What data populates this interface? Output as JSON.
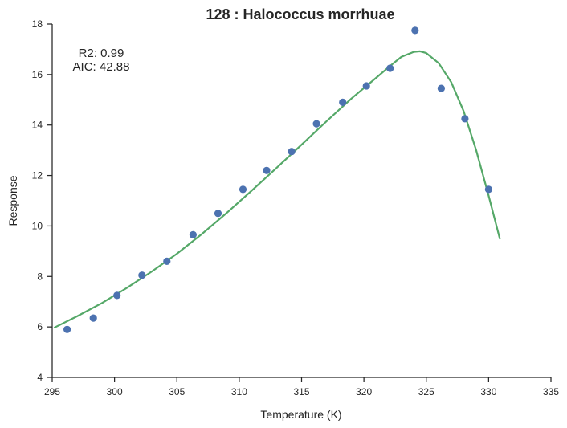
{
  "chart_data": {
    "type": "scatter",
    "title": "128 : Halococcus morrhuae",
    "xlabel": "Temperature (K)",
    "ylabel": "Response",
    "xlim": [
      295,
      335
    ],
    "ylim": [
      4,
      18
    ],
    "xticks": [
      "295",
      "300",
      "305",
      "310",
      "315",
      "320",
      "325",
      "330",
      "335"
    ],
    "yticks": [
      "4",
      "6",
      "8",
      "10",
      "12",
      "14",
      "16",
      "18"
    ],
    "grid": false,
    "annotations": [
      "R2: 0.99",
      "AIC: 42.88"
    ],
    "colors": {
      "points": "#4c72b0",
      "fit": "#55a868"
    },
    "series": [
      {
        "type": "scatter",
        "x": [
          296.2,
          298.3,
          300.2,
          302.2,
          304.2,
          306.3,
          308.3,
          310.3,
          312.2,
          314.2,
          316.2,
          318.3,
          320.2,
          322.1,
          324.1,
          326.2,
          328.1,
          330.0
        ],
        "y": [
          5.9,
          6.35,
          7.25,
          8.05,
          8.6,
          9.65,
          10.5,
          11.45,
          12.2,
          12.95,
          14.05,
          14.9,
          15.55,
          16.25,
          17.75,
          15.45,
          14.25,
          11.45
        ]
      },
      {
        "type": "line",
        "x": [
          295.2,
          297,
          299,
          301,
          303,
          305,
          307,
          309,
          311,
          313,
          315,
          317,
          319,
          321,
          322,
          323,
          324,
          324.5,
          325,
          326,
          327,
          328,
          329,
          330,
          330.9
        ],
        "y": [
          5.98,
          6.42,
          6.95,
          7.55,
          8.2,
          8.9,
          9.68,
          10.52,
          11.4,
          12.3,
          13.22,
          14.15,
          15.05,
          15.88,
          16.3,
          16.7,
          16.9,
          16.92,
          16.85,
          16.45,
          15.7,
          14.55,
          13.0,
          11.2,
          9.5
        ]
      }
    ]
  }
}
